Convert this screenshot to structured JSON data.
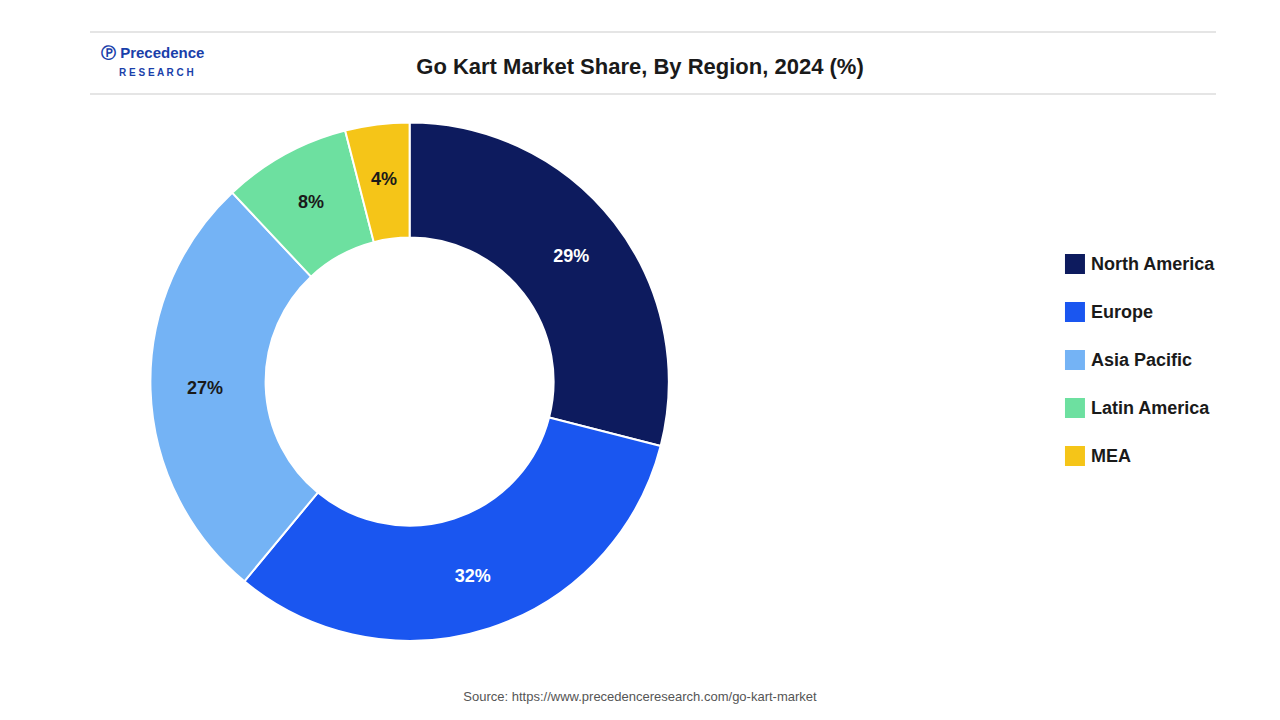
{
  "chart_data": {
    "type": "pie",
    "title": "Go Kart Market Share, By Region, 2024 (%)",
    "categories": [
      "North America",
      "Europe",
      "Asia Pacific",
      "Latin America",
      "MEA"
    ],
    "values": [
      29,
      32,
      27,
      8,
      4
    ],
    "value_labels": [
      "29%",
      "32%",
      "27%",
      "8%",
      "4%"
    ],
    "data_labels": true,
    "colors": [
      "#0d1b5e",
      "#1a56f0",
      "#74b3f5",
      "#6de0a0",
      "#f5c518"
    ],
    "legend": "right",
    "annotations": [
      "Ⓟ Precedence",
      "R E S E A R C H",
      "Source: https://www.precedenceresearch.com/go-kart-market"
    ]
  }
}
